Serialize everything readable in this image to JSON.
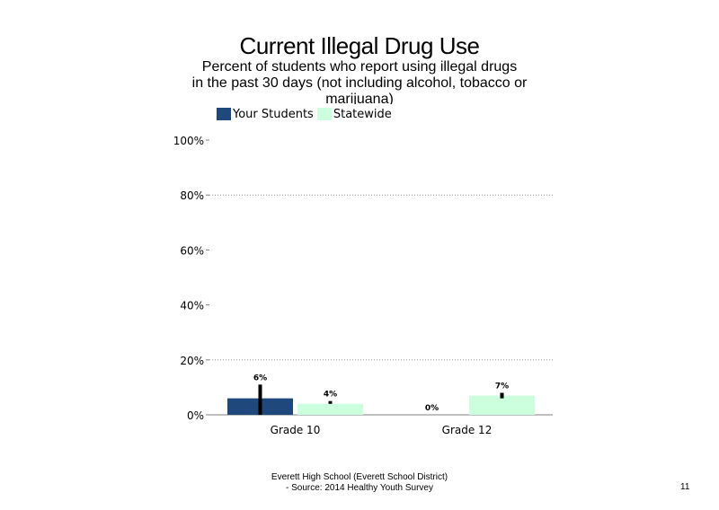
{
  "title": "Current Illegal Drug Use",
  "subtitle_line1": "Percent of students who report using illegal drugs",
  "subtitle_line2": "in the past 30 days (not including alcohol, tobacco or",
  "subtitle_line3": "marijuana)",
  "footer_line1": "Everett High School (Everett School District)",
  "footer_line2": "- Source: 2014 Healthy Youth Survey",
  "page_number": "11",
  "colors": {
    "your_students": "#1f497d",
    "statewide": "#ccffdd"
  },
  "chart_data": {
    "type": "bar",
    "categories": [
      "Grade 10",
      "Grade 12"
    ],
    "series": [
      {
        "name": "Your Students",
        "values": [
          6,
          0
        ],
        "labels": [
          "6%",
          "0%"
        ],
        "error": [
          [
            0,
            11
          ],
          [
            0,
            0
          ]
        ]
      },
      {
        "name": "Statewide",
        "values": [
          4,
          7
        ],
        "labels": [
          "4%",
          "7%"
        ],
        "error": [
          [
            4,
            5
          ],
          [
            6,
            8
          ]
        ]
      }
    ],
    "ylim": [
      0,
      100
    ],
    "yticks": [
      0,
      20,
      40,
      60,
      80,
      100
    ],
    "ytick_labels": [
      "0%",
      "20%",
      "40%",
      "60%",
      "80%",
      "100%"
    ],
    "grid_dotted": [
      20,
      80
    ],
    "legend_position": "top-left"
  }
}
